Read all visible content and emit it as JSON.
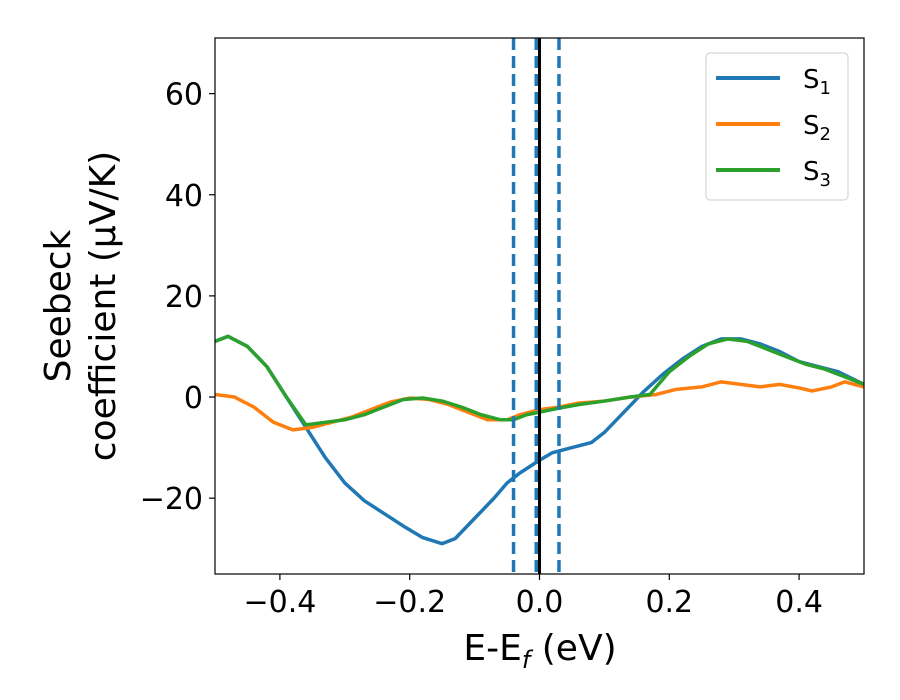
{
  "chart_data": {
    "type": "line",
    "xlabel": "E-E",
    "xlabel_sub": "f",
    "xlabel_unit": " (eV)",
    "ylabel_line1": "Seebeck",
    "ylabel_line2": "coefficient  (μV/K)",
    "xlim": [
      -0.5,
      0.5
    ],
    "ylim": [
      -35,
      71
    ],
    "xticks": [
      -0.4,
      -0.2,
      0.0,
      0.2,
      0.4
    ],
    "xtick_labels": [
      "−0.4",
      "−0.2",
      "0.0",
      "0.2",
      "0.4"
    ],
    "yticks": [
      -20,
      0,
      20,
      40,
      60
    ],
    "ytick_labels": [
      "−20",
      "0",
      "20",
      "40",
      "60"
    ],
    "grid": false,
    "legend_position": "top-right",
    "vlines": [
      {
        "x": 0.0,
        "color": "#000000",
        "style": "solid"
      },
      {
        "x": -0.04,
        "color": "#1f77b4",
        "style": "dashed"
      },
      {
        "x": -0.005,
        "color": "#1f77b4",
        "style": "dashed"
      },
      {
        "x": 0.03,
        "color": "#1f77b4",
        "style": "dashed"
      }
    ],
    "series": [
      {
        "name": "S",
        "sub": "1",
        "color": "#1f77b4",
        "points": [
          [
            -0.5,
            11
          ],
          [
            -0.48,
            12
          ],
          [
            -0.45,
            10
          ],
          [
            -0.42,
            6
          ],
          [
            -0.39,
            0
          ],
          [
            -0.36,
            -6
          ],
          [
            -0.33,
            -12
          ],
          [
            -0.3,
            -17
          ],
          [
            -0.27,
            -20.5
          ],
          [
            -0.24,
            -23
          ],
          [
            -0.21,
            -25.5
          ],
          [
            -0.18,
            -27.8
          ],
          [
            -0.15,
            -29
          ],
          [
            -0.13,
            -28
          ],
          [
            -0.1,
            -24
          ],
          [
            -0.07,
            -20
          ],
          [
            -0.05,
            -17
          ],
          [
            -0.03,
            -15
          ],
          [
            0.0,
            -12.5
          ],
          [
            0.02,
            -11
          ],
          [
            0.05,
            -10
          ],
          [
            0.08,
            -9
          ],
          [
            0.1,
            -7
          ],
          [
            0.13,
            -3
          ],
          [
            0.16,
            1
          ],
          [
            0.19,
            4.5
          ],
          [
            0.22,
            7.5
          ],
          [
            0.25,
            10
          ],
          [
            0.28,
            11.5
          ],
          [
            0.31,
            11.5
          ],
          [
            0.34,
            10.5
          ],
          [
            0.37,
            9
          ],
          [
            0.4,
            7
          ],
          [
            0.43,
            6
          ],
          [
            0.46,
            5
          ],
          [
            0.5,
            2.5
          ]
        ]
      },
      {
        "name": "S",
        "sub": "2",
        "color": "#ff7f0e",
        "points": [
          [
            -0.5,
            0.5
          ],
          [
            -0.47,
            0
          ],
          [
            -0.44,
            -2
          ],
          [
            -0.41,
            -5
          ],
          [
            -0.38,
            -6.5
          ],
          [
            -0.35,
            -6
          ],
          [
            -0.32,
            -5
          ],
          [
            -0.29,
            -4
          ],
          [
            -0.26,
            -2.5
          ],
          [
            -0.23,
            -1
          ],
          [
            -0.2,
            -0.2
          ],
          [
            -0.17,
            -0.5
          ],
          [
            -0.14,
            -1.5
          ],
          [
            -0.11,
            -3
          ],
          [
            -0.08,
            -4.5
          ],
          [
            -0.05,
            -4.5
          ],
          [
            -0.03,
            -3.5
          ],
          [
            0.0,
            -2.5
          ],
          [
            0.03,
            -2
          ],
          [
            0.06,
            -1.2
          ],
          [
            0.1,
            -0.8
          ],
          [
            0.14,
            0
          ],
          [
            0.18,
            0.5
          ],
          [
            0.21,
            1.5
          ],
          [
            0.25,
            2
          ],
          [
            0.28,
            3
          ],
          [
            0.31,
            2.5
          ],
          [
            0.34,
            2
          ],
          [
            0.37,
            2.5
          ],
          [
            0.4,
            1.8
          ],
          [
            0.42,
            1.2
          ],
          [
            0.45,
            2
          ],
          [
            0.47,
            3
          ],
          [
            0.5,
            2
          ]
        ]
      },
      {
        "name": "S",
        "sub": "3",
        "color": "#2ca02c",
        "points": [
          [
            -0.5,
            11
          ],
          [
            -0.48,
            12
          ],
          [
            -0.45,
            10
          ],
          [
            -0.42,
            6
          ],
          [
            -0.39,
            0
          ],
          [
            -0.36,
            -5.5
          ],
          [
            -0.33,
            -5
          ],
          [
            -0.3,
            -4.5
          ],
          [
            -0.27,
            -3.5
          ],
          [
            -0.24,
            -2
          ],
          [
            -0.21,
            -0.5
          ],
          [
            -0.18,
            -0.2
          ],
          [
            -0.15,
            -0.8
          ],
          [
            -0.12,
            -2
          ],
          [
            -0.09,
            -3.5
          ],
          [
            -0.06,
            -4.5
          ],
          [
            -0.04,
            -4.5
          ],
          [
            -0.02,
            -3.5
          ],
          [
            0.0,
            -3
          ],
          [
            0.03,
            -2.2
          ],
          [
            0.06,
            -1.5
          ],
          [
            0.1,
            -0.8
          ],
          [
            0.14,
            0
          ],
          [
            0.17,
            0.5
          ],
          [
            0.2,
            5
          ],
          [
            0.23,
            8
          ],
          [
            0.26,
            10.5
          ],
          [
            0.29,
            11.5
          ],
          [
            0.32,
            11
          ],
          [
            0.35,
            9.5
          ],
          [
            0.38,
            8
          ],
          [
            0.41,
            6.5
          ],
          [
            0.44,
            5.5
          ],
          [
            0.47,
            4
          ],
          [
            0.5,
            2.5
          ]
        ]
      }
    ]
  }
}
